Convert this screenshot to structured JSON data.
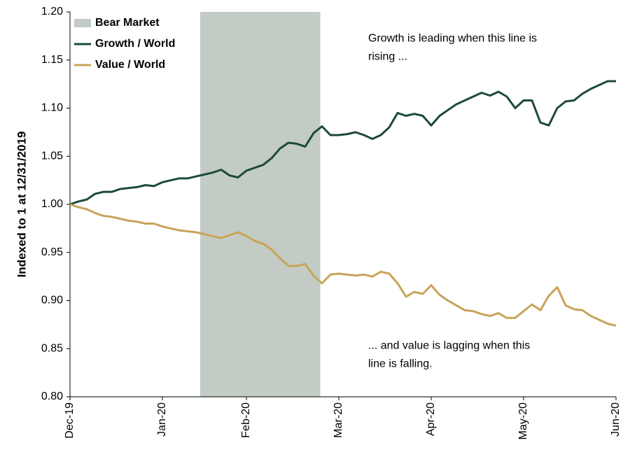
{
  "chart_data": {
    "type": "line",
    "y_label": "Indexed to 1 at 12/31/2019",
    "categories": [
      "Dec-19",
      null,
      null,
      null,
      null,
      null,
      null,
      null,
      null,
      null,
      null,
      "Jan-20",
      null,
      null,
      null,
      null,
      null,
      null,
      null,
      null,
      null,
      "Feb-20",
      null,
      null,
      null,
      null,
      null,
      null,
      null,
      null,
      null,
      null,
      "Mar-20",
      null,
      null,
      null,
      null,
      null,
      null,
      null,
      null,
      null,
      null,
      "Apr-20",
      null,
      null,
      null,
      null,
      null,
      null,
      null,
      null,
      null,
      null,
      "May-20",
      null,
      null,
      null,
      null,
      null,
      null,
      null,
      null,
      null,
      null,
      "Jun-20"
    ],
    "series": [
      {
        "name": "Growth / World",
        "color": "#1d4a3a",
        "values": [
          1.0,
          1.003,
          1.005,
          1.011,
          1.013,
          1.013,
          1.016,
          1.017,
          1.018,
          1.02,
          1.019,
          1.023,
          1.025,
          1.027,
          1.027,
          1.029,
          1.031,
          1.033,
          1.036,
          1.03,
          1.028,
          1.035,
          1.038,
          1.041,
          1.048,
          1.058,
          1.064,
          1.063,
          1.06,
          1.074,
          1.081,
          1.072,
          1.072,
          1.073,
          1.075,
          1.072,
          1.068,
          1.072,
          1.08,
          1.095,
          1.092,
          1.094,
          1.092,
          1.082,
          1.092,
          1.098,
          1.104,
          1.108,
          1.112,
          1.116,
          1.113,
          1.117,
          1.112,
          1.1,
          1.108,
          1.108,
          1.085,
          1.082,
          1.1,
          1.107,
          1.108,
          1.115,
          1.12,
          1.124,
          1.128,
          1.128
        ]
      },
      {
        "name": "Value / World",
        "color": "#c9a35a",
        "values": [
          1.0,
          0.997,
          0.995,
          0.991,
          0.988,
          0.987,
          0.985,
          0.983,
          0.982,
          0.98,
          0.98,
          0.977,
          0.975,
          0.973,
          0.972,
          0.971,
          0.969,
          0.967,
          0.965,
          0.968,
          0.971,
          0.967,
          0.962,
          0.959,
          0.953,
          0.944,
          0.936,
          0.936,
          0.938,
          0.926,
          0.918,
          0.927,
          0.928,
          0.927,
          0.926,
          0.927,
          0.925,
          0.93,
          0.928,
          0.918,
          0.904,
          0.909,
          0.907,
          0.916,
          0.906,
          0.9,
          0.895,
          0.89,
          0.889,
          0.886,
          0.884,
          0.887,
          0.882,
          0.882,
          0.889,
          0.896,
          0.89,
          0.905,
          0.914,
          0.895,
          0.891,
          0.89,
          0.884,
          0.88,
          0.876,
          0.874
        ]
      }
    ],
    "shaded_regions": [
      {
        "name": "Bear Market",
        "start": 15.5,
        "end": 29.8,
        "color": "#c2ccc4"
      }
    ],
    "annotations": [
      {
        "lines": [
          "Growth is leading when this line is",
          "rising ..."
        ],
        "x": 35.5,
        "y": 1.172
      },
      {
        "lines": [
          "... and value is lagging when this",
          "line is falling."
        ],
        "x": 35.5,
        "y": 0.853
      }
    ],
    "ylim": [
      0.8,
      1.2
    ],
    "yticks": [
      {
        "value": 0.8,
        "label": "0.80"
      },
      0.85,
      {
        "value": 0.9,
        "label": "0.90"
      },
      0.95,
      {
        "value": 1.0,
        "label": "1.00"
      },
      1.05,
      {
        "value": 1.1,
        "label": "1.10"
      },
      1.15,
      {
        "value": 1.2,
        "label": "1.20"
      }
    ],
    "grid": false,
    "legend": "upper left"
  }
}
